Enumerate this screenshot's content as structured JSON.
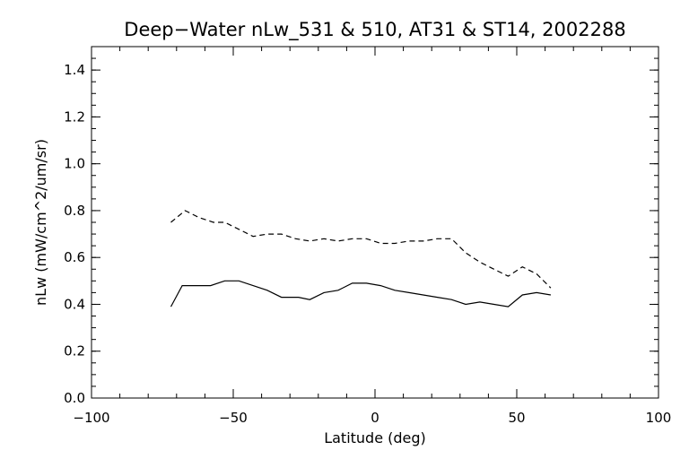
{
  "chart_data": {
    "type": "line",
    "title": "Deep−Water nLw_531 & 510, AT31 & ST14, 2002288",
    "xlabel": "Latitude (deg)",
    "ylabel": "nLw (mW/cm^2/um/sr)",
    "xlim": [
      -100,
      100
    ],
    "ylim": [
      0.0,
      1.5
    ],
    "x_major_ticks": [
      -100,
      -50,
      0,
      50,
      100
    ],
    "x_tick_labels": [
      "−100",
      "−50",
      "0",
      "50",
      "100"
    ],
    "x_minor_step": 10,
    "y_major_ticks": [
      0.0,
      0.2,
      0.4,
      0.6,
      0.8,
      1.0,
      1.2,
      1.4
    ],
    "y_tick_labels": [
      "0.0",
      "0.2",
      "0.4",
      "0.6",
      "0.8",
      "1.0",
      "1.2",
      "1.4"
    ],
    "y_minor_step": 0.05,
    "grid": false,
    "series": [
      {
        "style": "solid",
        "x": [
          -72,
          -68,
          -63,
          -58,
          -53,
          -48,
          -43,
          -38,
          -33,
          -30,
          -27,
          -23,
          -18,
          -13,
          -8,
          -3,
          2,
          7,
          12,
          17,
          22,
          27,
          32,
          37,
          42,
          47,
          52,
          57,
          62
        ],
        "y": [
          0.39,
          0.48,
          0.48,
          0.48,
          0.5,
          0.5,
          0.48,
          0.46,
          0.43,
          0.43,
          0.43,
          0.42,
          0.45,
          0.46,
          0.49,
          0.49,
          0.48,
          0.46,
          0.45,
          0.44,
          0.43,
          0.42,
          0.4,
          0.41,
          0.4,
          0.39,
          0.44,
          0.45,
          0.44
        ]
      },
      {
        "style": "dashed",
        "x": [
          -72,
          -67,
          -62,
          -57,
          -53,
          -48,
          -43,
          -38,
          -33,
          -28,
          -23,
          -18,
          -13,
          -8,
          -3,
          2,
          7,
          12,
          17,
          22,
          27,
          32,
          37,
          42,
          47,
          52,
          57,
          62
        ],
        "y": [
          0.75,
          0.8,
          0.77,
          0.75,
          0.75,
          0.72,
          0.69,
          0.7,
          0.7,
          0.68,
          0.67,
          0.68,
          0.67,
          0.68,
          0.68,
          0.66,
          0.66,
          0.67,
          0.67,
          0.68,
          0.68,
          0.62,
          0.58,
          0.55,
          0.52,
          0.56,
          0.53,
          0.47
        ]
      }
    ]
  }
}
